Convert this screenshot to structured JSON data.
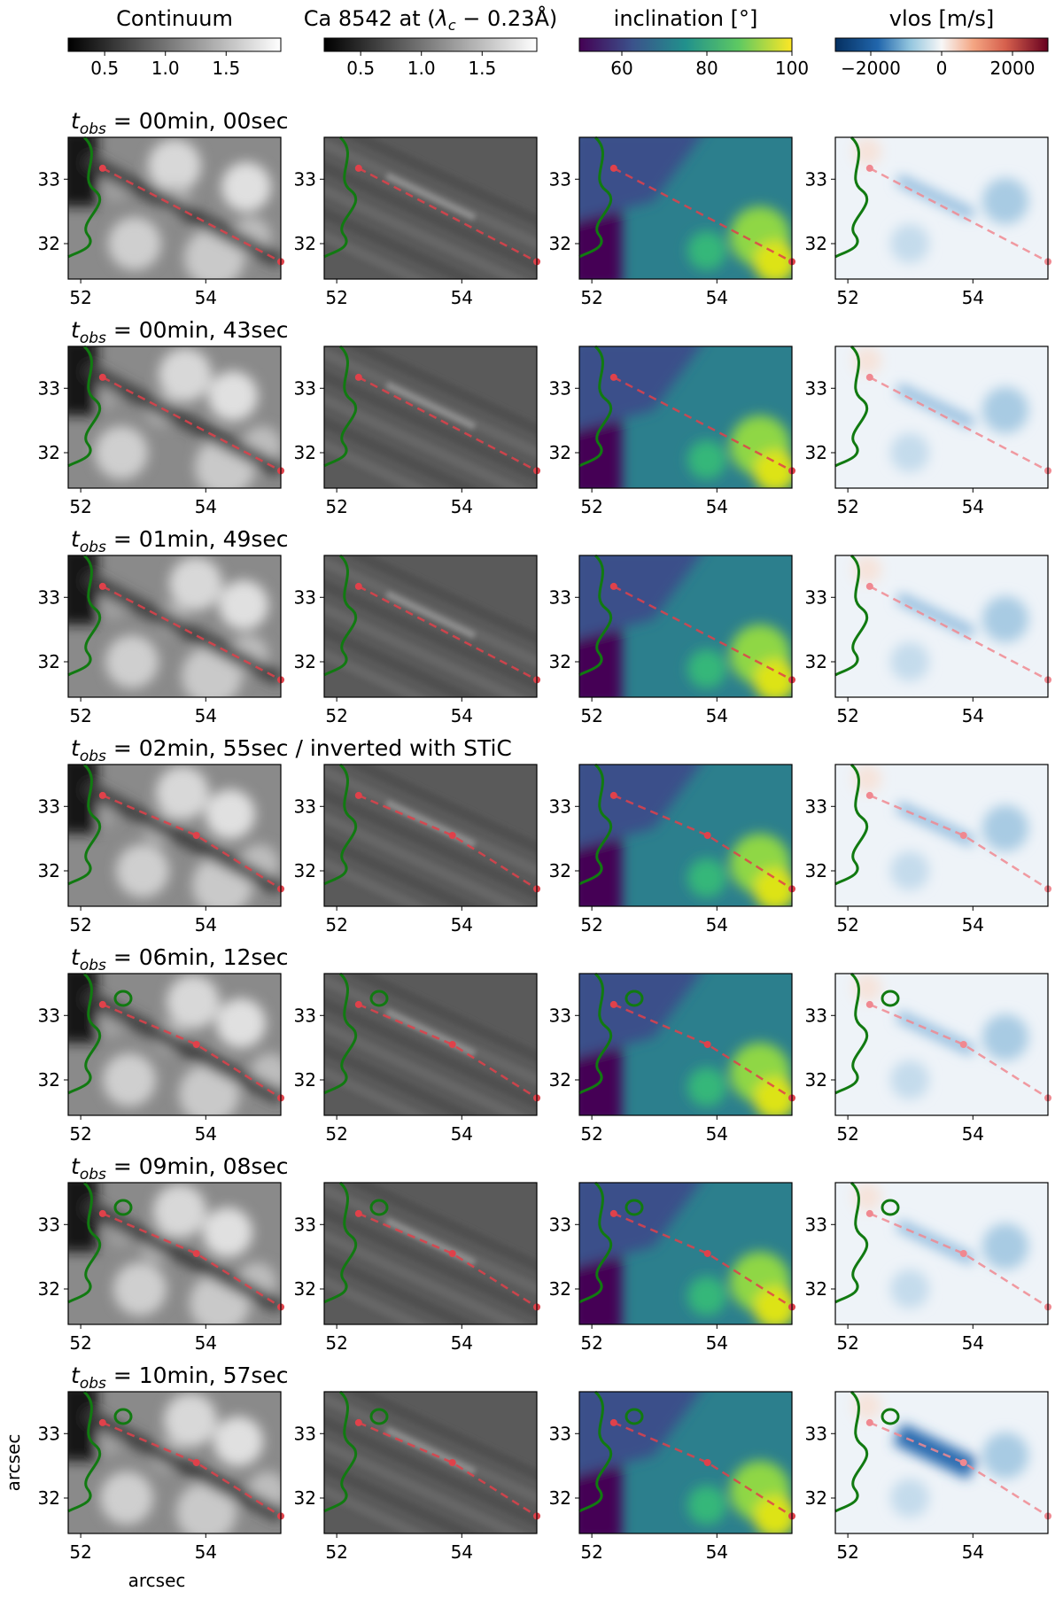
{
  "columns": [
    {
      "title": "Continuum",
      "cmap": "gray",
      "vmin": 0.2,
      "vmax": 1.95,
      "ticks": [
        "0.5",
        "1.0",
        "1.5"
      ],
      "tick_values": [
        0.5,
        1.0,
        1.5
      ]
    },
    {
      "title_main": "Ca 8542 at (",
      "title_math": "λ",
      "title_sub": "c",
      "title_tail": " − 0.23Å)",
      "cmap": "gray",
      "vmin": 0.2,
      "vmax": 1.95,
      "ticks": [
        "0.5",
        "1.0",
        "1.5"
      ],
      "tick_values": [
        0.5,
        1.0,
        1.5
      ]
    },
    {
      "title": "inclination [°]",
      "cmap": "viridis",
      "vmin": 50,
      "vmax": 100,
      "ticks": [
        "60",
        "80",
        "100"
      ],
      "tick_values": [
        60,
        80,
        100
      ]
    },
    {
      "title": "vlos [m/s]",
      "cmap": "RdBu_r",
      "vmin": -3000,
      "vmax": 3000,
      "ticks": [
        "−2000",
        "0",
        "2000"
      ],
      "tick_values": [
        -2000,
        0,
        2000
      ]
    }
  ],
  "rows": [
    {
      "t_label": "t",
      "t_sub": "obs",
      "label": " = 00min, 00sec",
      "three_markers": false
    },
    {
      "t_label": "t",
      "t_sub": "obs",
      "label": " = 00min, 43sec",
      "three_markers": false
    },
    {
      "t_label": "t",
      "t_sub": "obs",
      "label": " = 01min, 49sec",
      "three_markers": false
    },
    {
      "t_label": "t",
      "t_sub": "obs",
      "label": " = 02min, 55sec / inverted with STiC",
      "three_markers": true
    },
    {
      "t_label": "t",
      "t_sub": "obs",
      "label": " = 06min, 12sec",
      "three_markers": true
    },
    {
      "t_label": "t",
      "t_sub": "obs",
      "label": " = 09min, 08sec",
      "three_markers": true
    },
    {
      "t_label": "t",
      "t_sub": "obs",
      "label": " = 10min, 57sec",
      "three_markers": true
    }
  ],
  "axes": {
    "x_ticks": [
      "52",
      "54"
    ],
    "x_tick_values": [
      52,
      54
    ],
    "y_ticks": [
      "33",
      "32"
    ],
    "y_tick_values": [
      33,
      32
    ],
    "xlim": [
      51.8,
      55.2
    ],
    "ylim": [
      31.45,
      33.65
    ],
    "xlabel": "arcsec",
    "ylabel": "arcsec"
  },
  "path_points": {
    "start": [
      52.35,
      33.17
    ],
    "mid": [
      53.85,
      32.55
    ],
    "end": [
      55.2,
      31.72
    ]
  },
  "colors": {
    "contour": "#117a11",
    "path": "#e0414a",
    "path_light": "#f08890"
  }
}
